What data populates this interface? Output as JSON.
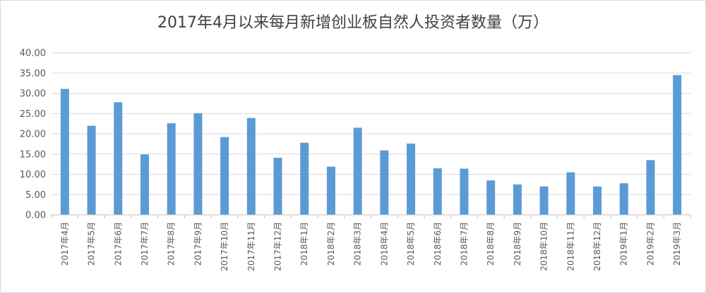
{
  "chart_data": {
    "type": "bar",
    "title": "2017年4月以来每月新增创业板自然人投资者数量（万）",
    "xlabel": "",
    "ylabel": "",
    "ylim": [
      0,
      40
    ],
    "yticks": [
      "0.00",
      "5.00",
      "10.00",
      "15.00",
      "20.00",
      "25.00",
      "30.00",
      "35.00",
      "40.00"
    ],
    "grid": true,
    "legend": "none",
    "color": "#5b9bd5",
    "categories": [
      "2017年4月",
      "2017年5月",
      "2017年6月",
      "2017年7月",
      "2017年8月",
      "2017年9月",
      "2017年10月",
      "2017年11月",
      "2017年12月",
      "2018年1月",
      "2018年2月",
      "2018年3月",
      "2018年4月",
      "2018年5月",
      "2018年6月",
      "2018年7月",
      "2018年8月",
      "2018年9月",
      "2018年10月",
      "2018年11月",
      "2018年12月",
      "2019年1月",
      "2019年2月",
      "2019年3月"
    ],
    "values": [
      31.1,
      22.0,
      27.8,
      14.9,
      22.6,
      25.1,
      19.2,
      23.9,
      14.1,
      17.8,
      11.9,
      21.5,
      15.9,
      17.6,
      11.5,
      11.4,
      8.5,
      7.5,
      7.0,
      10.5,
      7.0,
      7.8,
      13.5,
      34.5
    ]
  }
}
